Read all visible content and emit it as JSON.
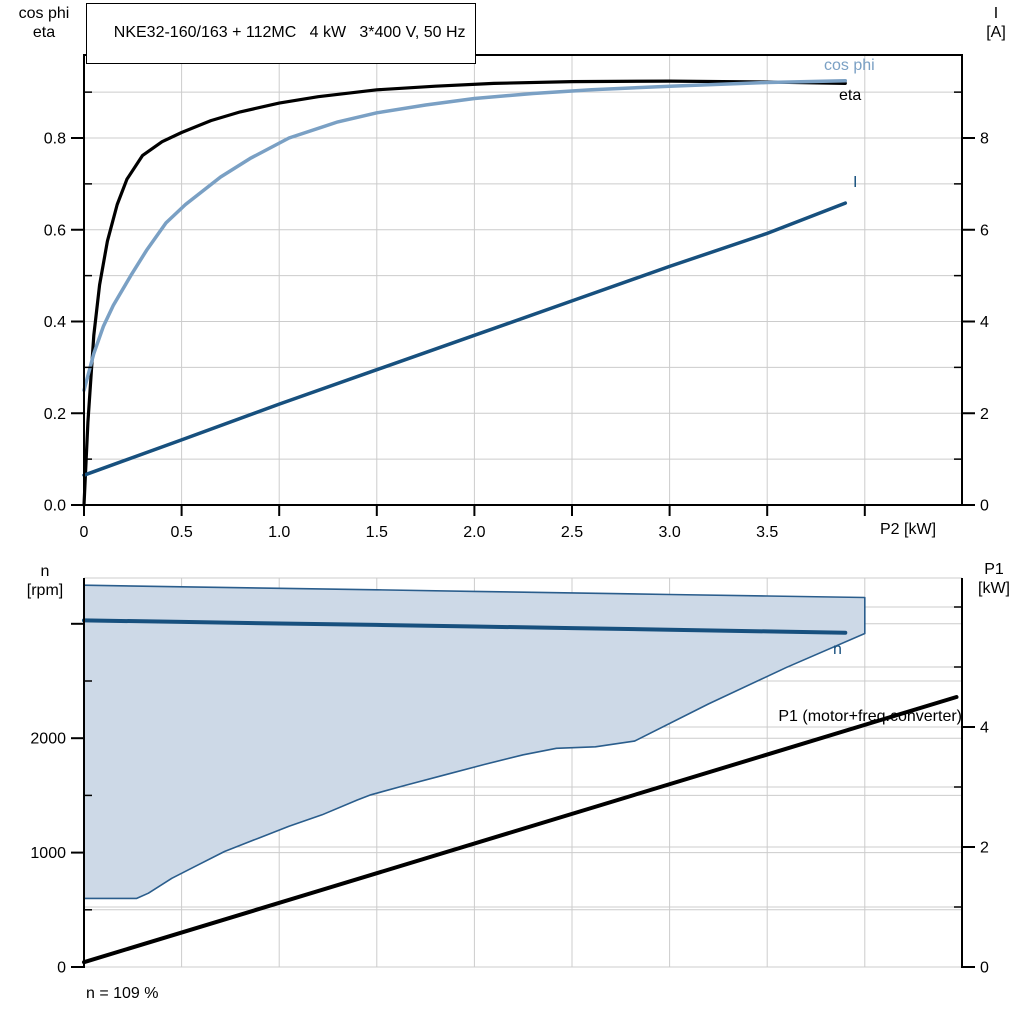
{
  "title": "NKE32-160/163 + 112MC   4 kW   3*400 V, 50 Hz",
  "annotation": "n = 109 %",
  "colors": {
    "eta": "#000000",
    "cos_phi": "#7aa0c4",
    "current": "#17507e",
    "speed": "#17507e",
    "p1": "#000000",
    "area_fill": "#cdd9e7",
    "area_border": "#2a5d8c",
    "grid": "#cccccc",
    "axis": "#000000"
  },
  "axis_labels": {
    "top_left": [
      "cos phi",
      "eta"
    ],
    "top_right": [
      "I",
      "[A]"
    ],
    "x": "P2 [kW]",
    "bottom_left": [
      "n",
      "[rpm]"
    ],
    "bottom_right": [
      "P1",
      "[kW]"
    ]
  },
  "curve_labels": {
    "cos_phi": "cos phi",
    "eta": "eta",
    "current": "I",
    "speed": "n",
    "p1": "P1 (motor+freq.converter)"
  },
  "chart_data": [
    {
      "type": "line",
      "title": "NKE32-160/163 + 112MC   4 kW   3*400 V, 50 Hz",
      "xlabel": "P2 [kW]",
      "ylabel_left": "cos phi / eta",
      "ylabel_right": "I [A]",
      "x_range": [
        0,
        4.49
      ],
      "x_ticks": [
        0,
        0.5,
        1,
        1.5,
        2,
        2.5,
        3,
        3.5,
        4
      ],
      "x_tick_labels": [
        "0",
        "0.5",
        "1.0",
        "1.5",
        "2.0",
        "2.5",
        "3.0",
        "3.5",
        ""
      ],
      "y_left": {
        "range": [
          0,
          0.98
        ],
        "major": [
          0,
          0.2,
          0.4,
          0.6,
          0.8
        ],
        "labels": [
          "0.0",
          "0.2",
          "0.4",
          "0.6",
          "0.8"
        ],
        "minor": [
          0.1,
          0.3,
          0.5,
          0.7,
          0.9
        ]
      },
      "y_right": {
        "range": [
          0,
          9.8
        ],
        "major": [
          0,
          2,
          4,
          6,
          8
        ],
        "labels": [
          "0",
          "2",
          "4",
          "6",
          "8"
        ],
        "minor": [
          1,
          3,
          5,
          7,
          9
        ]
      },
      "series": [
        {
          "key": "eta",
          "name": "eta",
          "axis": "left",
          "color_ref": "eta",
          "width": 3.2,
          "points": [
            [
              0,
              0
            ],
            [
              0.02,
              0.18
            ],
            [
              0.05,
              0.37
            ],
            [
              0.08,
              0.48
            ],
            [
              0.12,
              0.575
            ],
            [
              0.17,
              0.655
            ],
            [
              0.22,
              0.71
            ],
            [
              0.3,
              0.762
            ],
            [
              0.4,
              0.792
            ],
            [
              0.5,
              0.812
            ],
            [
              0.65,
              0.838
            ],
            [
              0.8,
              0.857
            ],
            [
              1,
              0.876
            ],
            [
              1.2,
              0.89
            ],
            [
              1.5,
              0.905
            ],
            [
              1.8,
              0.913
            ],
            [
              2.1,
              0.919
            ],
            [
              2.5,
              0.923
            ],
            [
              3,
              0.924
            ],
            [
              3.5,
              0.922
            ],
            [
              3.9,
              0.919
            ]
          ]
        },
        {
          "key": "cos-phi",
          "name": "cos phi",
          "axis": "left",
          "color_ref": "cos_phi",
          "width": 3.5,
          "points": [
            [
              0,
              0.25
            ],
            [
              0.05,
              0.33
            ],
            [
              0.1,
              0.39
            ],
            [
              0.15,
              0.435
            ],
            [
              0.24,
              0.5
            ],
            [
              0.32,
              0.555
            ],
            [
              0.42,
              0.615
            ],
            [
              0.52,
              0.655
            ],
            [
              0.7,
              0.715
            ],
            [
              0.85,
              0.755
            ],
            [
              1.05,
              0.8
            ],
            [
              1.3,
              0.835
            ],
            [
              1.5,
              0.855
            ],
            [
              1.75,
              0.872
            ],
            [
              2,
              0.886
            ],
            [
              2.3,
              0.897
            ],
            [
              2.6,
              0.905
            ],
            [
              3,
              0.913
            ],
            [
              3.5,
              0.921
            ],
            [
              3.9,
              0.925
            ]
          ]
        },
        {
          "key": "current-I",
          "name": "I",
          "axis": "right",
          "color_ref": "current",
          "width": 3.5,
          "points": [
            [
              0,
              0.65
            ],
            [
              0.5,
              1.42
            ],
            [
              1,
              2.2
            ],
            [
              1.5,
              2.95
            ],
            [
              2,
              3.7
            ],
            [
              2.5,
              4.45
            ],
            [
              3,
              5.2
            ],
            [
              3.5,
              5.92
            ],
            [
              3.9,
              6.58
            ]
          ]
        }
      ]
    },
    {
      "type": "line-area",
      "xlabel": "",
      "ylabel_left": "n [rpm]",
      "ylabel_right": "P1 [kW]",
      "x_range": [
        0,
        4.49
      ],
      "x_grid": [
        0.5,
        1,
        1.5,
        2,
        2.5,
        3,
        3.5,
        4
      ],
      "y_left": {
        "range": [
          0,
          3400
        ],
        "major": [
          0,
          1000,
          2000,
          3000
        ],
        "labels": [
          "0",
          "1000",
          "2000",
          ""
        ],
        "minor": [
          500,
          1500,
          2500
        ]
      },
      "y_right": {
        "range": [
          0,
          6.48
        ],
        "major": [
          0,
          2,
          4
        ],
        "labels": [
          "0",
          "2",
          "4"
        ],
        "minor": [
          1,
          3,
          5,
          6
        ]
      },
      "area": {
        "name": "speed-operating-range",
        "upper": [
          [
            0,
            3337
          ],
          [
            0.5,
            3323
          ],
          [
            1,
            3310
          ],
          [
            1.5,
            3297
          ],
          [
            2,
            3283
          ],
          [
            2.5,
            3270
          ],
          [
            3,
            3256
          ],
          [
            3.5,
            3243
          ],
          [
            4,
            3230
          ]
        ],
        "lower": [
          [
            0,
            600
          ],
          [
            0.27,
            600
          ],
          [
            0.33,
            645
          ],
          [
            0.45,
            775
          ],
          [
            0.57,
            880
          ],
          [
            0.72,
            1010
          ],
          [
            0.9,
            1130
          ],
          [
            1.05,
            1230
          ],
          [
            1.22,
            1330
          ],
          [
            1.4,
            1460
          ],
          [
            1.47,
            1505
          ],
          [
            1.65,
            1590
          ],
          [
            1.85,
            1680
          ],
          [
            2.05,
            1770
          ],
          [
            2.25,
            1855
          ],
          [
            2.42,
            1912
          ],
          [
            2.62,
            1925
          ],
          [
            2.82,
            1975
          ],
          [
            3.2,
            2300
          ],
          [
            3.6,
            2620
          ],
          [
            4,
            2915
          ]
        ]
      },
      "series": [
        {
          "key": "speed-n",
          "name": "n",
          "axis": "left",
          "color_ref": "speed",
          "width": 4,
          "points": [
            [
              0,
              3030
            ],
            [
              0.5,
              3017
            ],
            [
              1,
              3003
            ],
            [
              1.5,
              2990
            ],
            [
              2,
              2976
            ],
            [
              2.5,
              2962
            ],
            [
              3,
              2948
            ],
            [
              3.5,
              2934
            ],
            [
              3.9,
              2922
            ]
          ]
        },
        {
          "key": "p1",
          "name": "P1 (motor+freq.converter)",
          "axis": "right",
          "color_ref": "p1",
          "width": 4,
          "points": [
            [
              0,
              0.08
            ],
            [
              4.47,
              4.5
            ]
          ]
        }
      ],
      "annotation": "n = 109 %"
    }
  ]
}
